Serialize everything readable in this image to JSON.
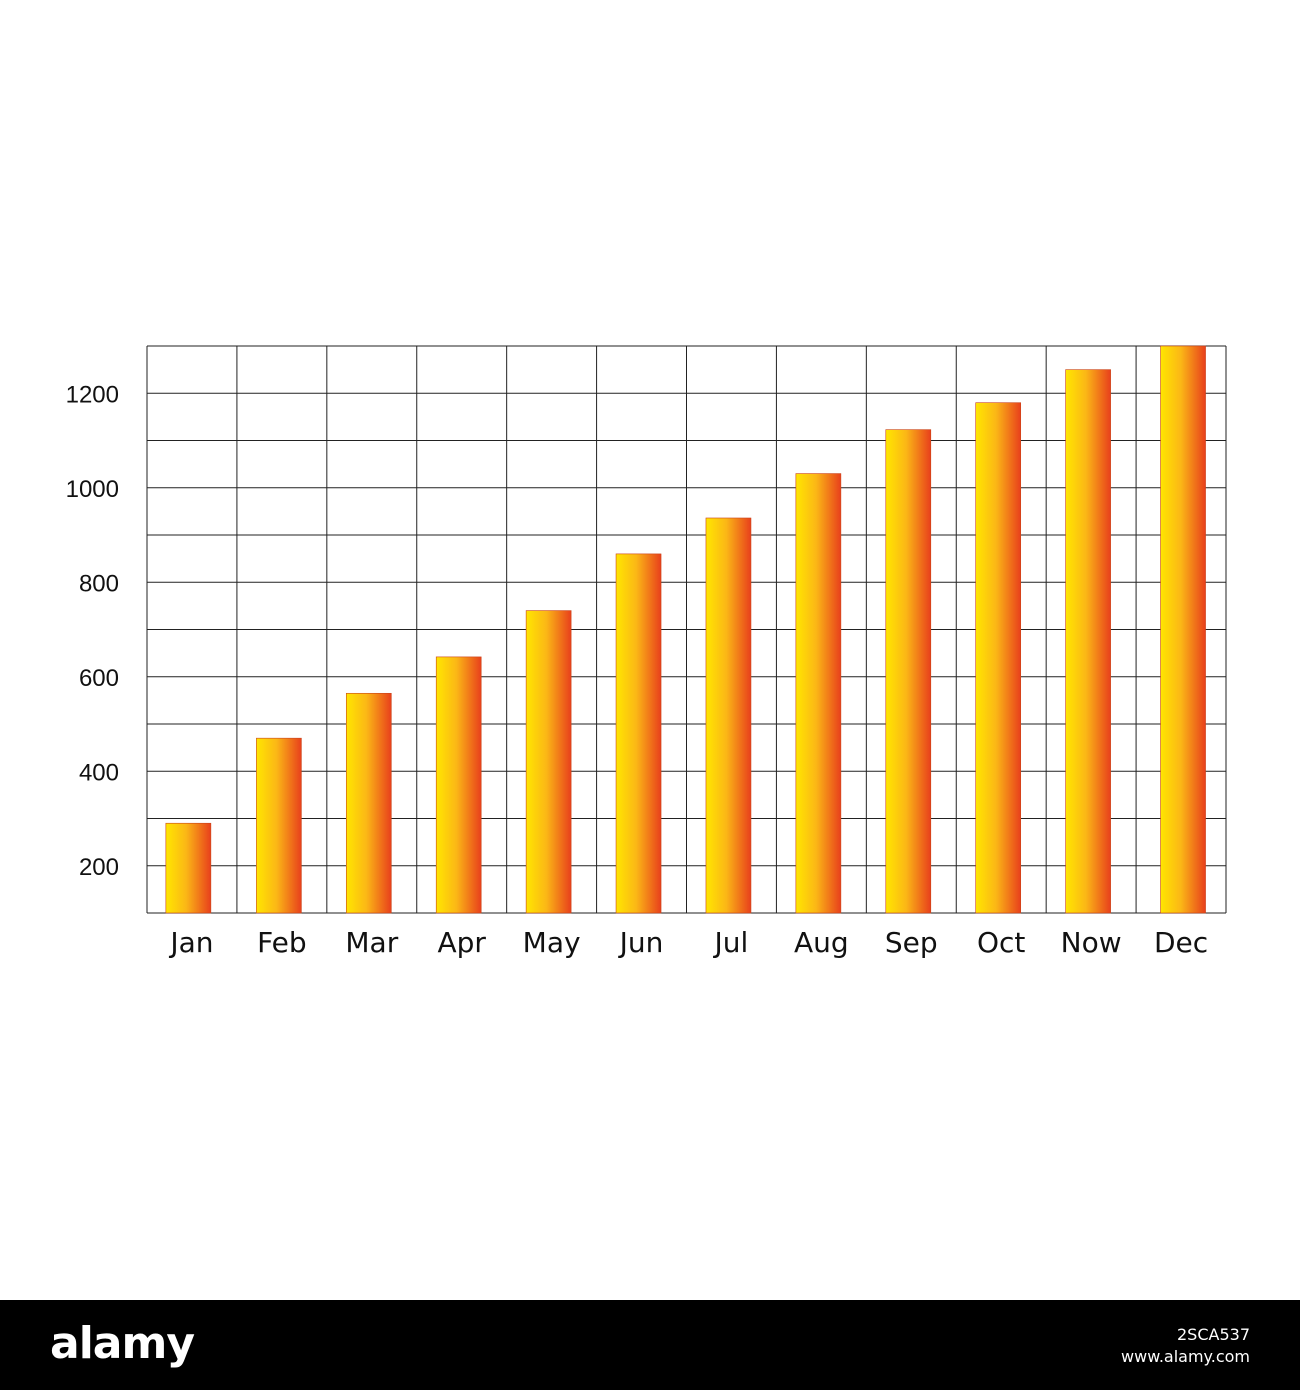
{
  "chart_data": {
    "type": "bar",
    "categories": [
      "Jan",
      "Feb",
      "Mar",
      "Apr",
      "May",
      "Jun",
      "Jul",
      "Aug",
      "Sep",
      "Oct",
      "Now",
      "Dec"
    ],
    "values": [
      290,
      470,
      565,
      642,
      740,
      860,
      936,
      1030,
      1123,
      1180,
      1250,
      1300
    ],
    "yticks": [
      200,
      400,
      600,
      800,
      1000,
      1200
    ],
    "ylim": [
      100,
      1300
    ],
    "grid": true,
    "title": "",
    "xlabel": "",
    "ylabel": "",
    "bar_gradient": [
      "#ffe600",
      "#e8401c"
    ]
  },
  "footer": {
    "brand": "alamy",
    "image_id": "2SCA537",
    "site": "www.alamy.com"
  }
}
